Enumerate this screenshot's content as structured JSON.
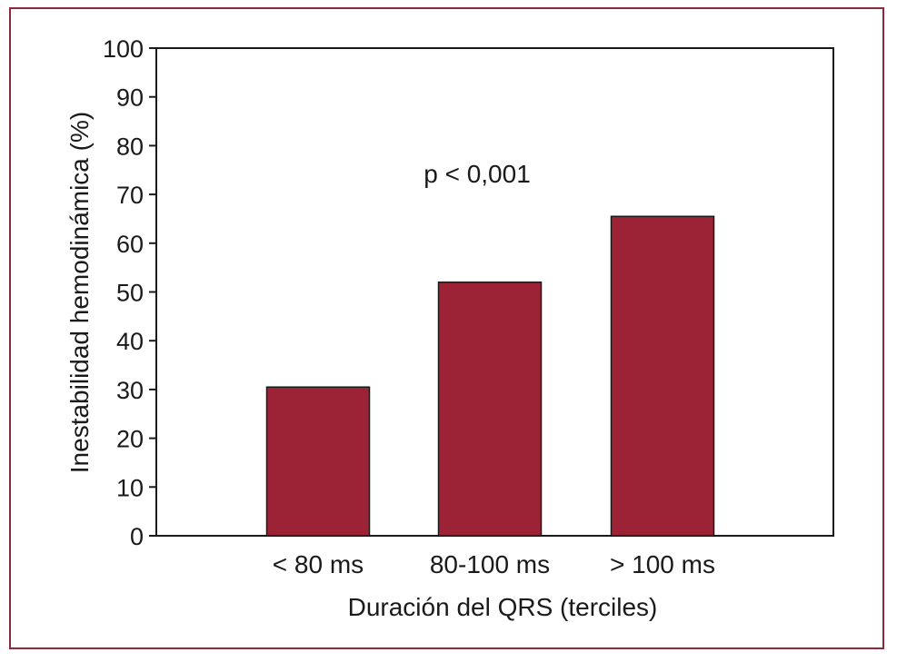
{
  "chart_data": {
    "type": "bar",
    "categories": [
      "< 80 ms",
      "80-100 ms",
      "> 100 ms"
    ],
    "values": [
      30.5,
      52,
      65.5
    ],
    "xlabel": "Duración del QRS (terciles)",
    "ylabel": "Inestabilidad hemodinámica (%)",
    "ylim": [
      0,
      100
    ],
    "yticks": [
      0,
      10,
      20,
      30,
      40,
      50,
      60,
      70,
      80,
      90,
      100
    ],
    "annotation": "p < 0,001",
    "bar_color": "#9b2335",
    "border_color": "#8a2a3a",
    "grid": false
  }
}
